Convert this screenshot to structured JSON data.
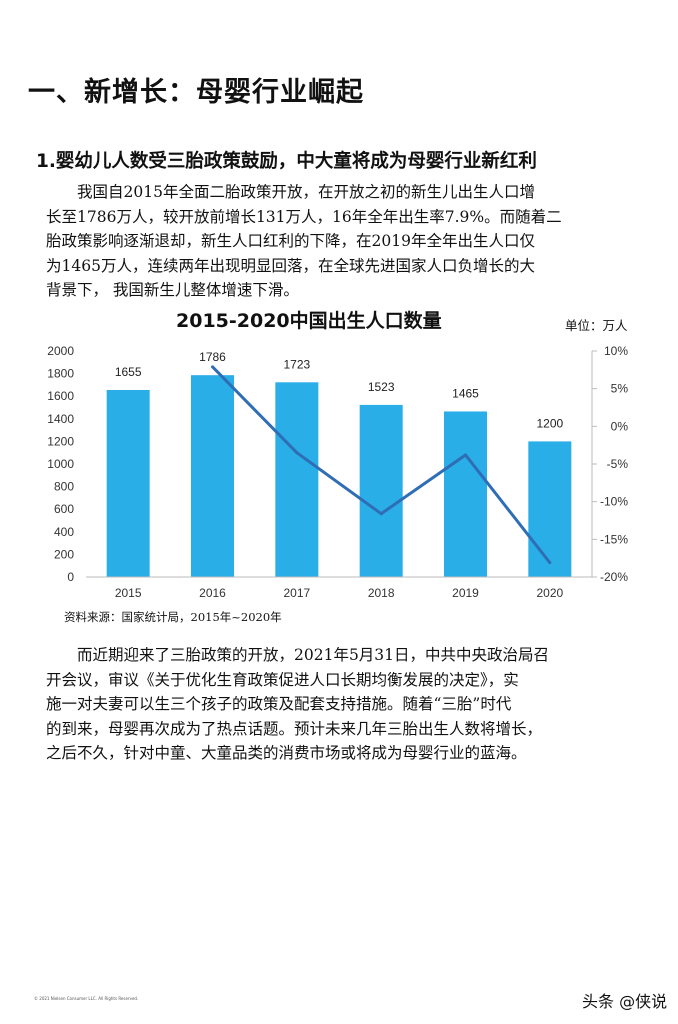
{
  "heading": "一、新增长：母婴行业崛起",
  "subheading": "1.婴幼儿人数受三胎政策鼓励，中大童将成为母婴行业新红利",
  "paragraph1_lines": [
    "　　我国自2015年全面二胎政策开放，在开放之初的新生儿出生人口增",
    "长至1786万人，较开放前增长131万人，16年全年出生率7.9%。而随着二",
    "胎政策影响逐渐退却，新生人口红利的下降，在2019年全年出生人口仅",
    "为1465万人，连续两年出现明显回落，在全球先进国家人口负增长的大",
    "背景下， 我国新生儿整体增速下滑。"
  ],
  "chart": {
    "title": "2015-2020中国出生人口数量",
    "unit_label": "单位：万人",
    "source": "资料来源：国家统计局，2015年~2020年"
  },
  "chart_data": {
    "type": "bar",
    "categories": [
      "2015",
      "2016",
      "2017",
      "2018",
      "2019",
      "2020"
    ],
    "series": [
      {
        "type": "bar",
        "values": [
          1655,
          1786,
          1723,
          1523,
          1465,
          1200
        ],
        "color": "#29AEE8"
      },
      {
        "type": "line",
        "axis": "right",
        "values": [
          null,
          7.9,
          -3.5,
          -11.6,
          -3.8,
          -18.1
        ],
        "color": "#2F6DB5"
      }
    ],
    "ylim": [
      0,
      2000
    ],
    "yticks": [
      0,
      200,
      400,
      600,
      800,
      1000,
      1200,
      1400,
      1600,
      1800,
      2000
    ],
    "y2lim": [
      -20,
      10
    ],
    "y2ticks": [
      "10%",
      "5%",
      "0%",
      "-5%",
      "-10%",
      "-15%",
      "-20%"
    ],
    "y2tick_values": [
      10,
      5,
      0,
      -5,
      -10,
      -15,
      -20
    ],
    "data_labels": [
      "1655",
      "1786",
      "1723",
      "1523",
      "1465",
      "1200"
    ],
    "grid": false
  },
  "paragraph2_lines": [
    "　　而近期迎来了三胎政策的开放，2021年5月31日，中共中央政治局召",
    "开会议，审议《关于优化生育政策促进人口长期均衡发展的决定》，实",
    "施一对夫妻可以生三个孩子的政策及配套支持措施。随着“三胎”时代",
    "的到来，母婴再次成为了热点话题。预计未来几年三胎出生人数将增长，",
    "之后不久，针对中童、大童品类的消费市场或将成为母婴行业的蓝海。"
  ],
  "footer": "© 2021 Nielsen Consumer LLC. All Rights Reserved.",
  "watermark": "头条 @侠说"
}
